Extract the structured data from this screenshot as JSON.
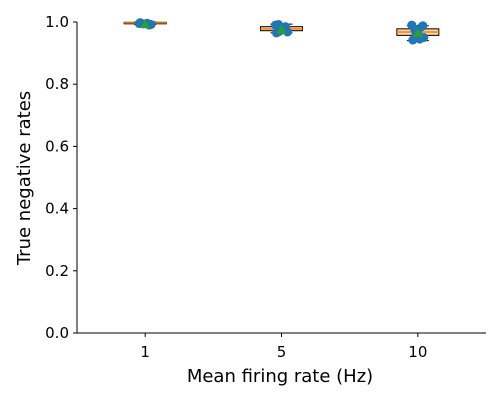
{
  "chart_data": {
    "type": "box",
    "xlabel": "Mean firing rate (Hz)",
    "ylabel": "True negative rates",
    "ylim": [
      0.0,
      1.0
    ],
    "yticks": [
      "0.0",
      "0.2",
      "0.4",
      "0.6",
      "0.8",
      "1.0"
    ],
    "categories": [
      "1",
      "5",
      "10"
    ],
    "colors": {
      "box_fill": "#fdd5a4",
      "median": "#ff7f0e",
      "points": "#1f77b4",
      "mean": "#2ca02c"
    },
    "groups": [
      {
        "category": "1",
        "q1": 0.995,
        "median": 0.997,
        "q3": 0.999,
        "whisker_low": 0.992,
        "whisker_high": 1.0,
        "mean": 0.993,
        "points": [
          0.995,
          0.99,
          0.994,
          0.992,
          0.998,
          0.996
        ]
      },
      {
        "category": "5",
        "q1": 0.972,
        "median": 0.978,
        "q3": 0.985,
        "whisker_low": 0.965,
        "whisker_high": 0.993,
        "mean": 0.975,
        "points": [
          0.99,
          0.985,
          0.97,
          0.968,
          0.965,
          0.98,
          0.975,
          0.992
        ]
      },
      {
        "category": "10",
        "q1": 0.957,
        "median": 0.968,
        "q3": 0.978,
        "whisker_low": 0.94,
        "whisker_high": 0.988,
        "mean": 0.965,
        "points": [
          0.99,
          0.985,
          0.96,
          0.95,
          0.942,
          0.945,
          0.97,
          0.975,
          0.988
        ]
      }
    ]
  }
}
